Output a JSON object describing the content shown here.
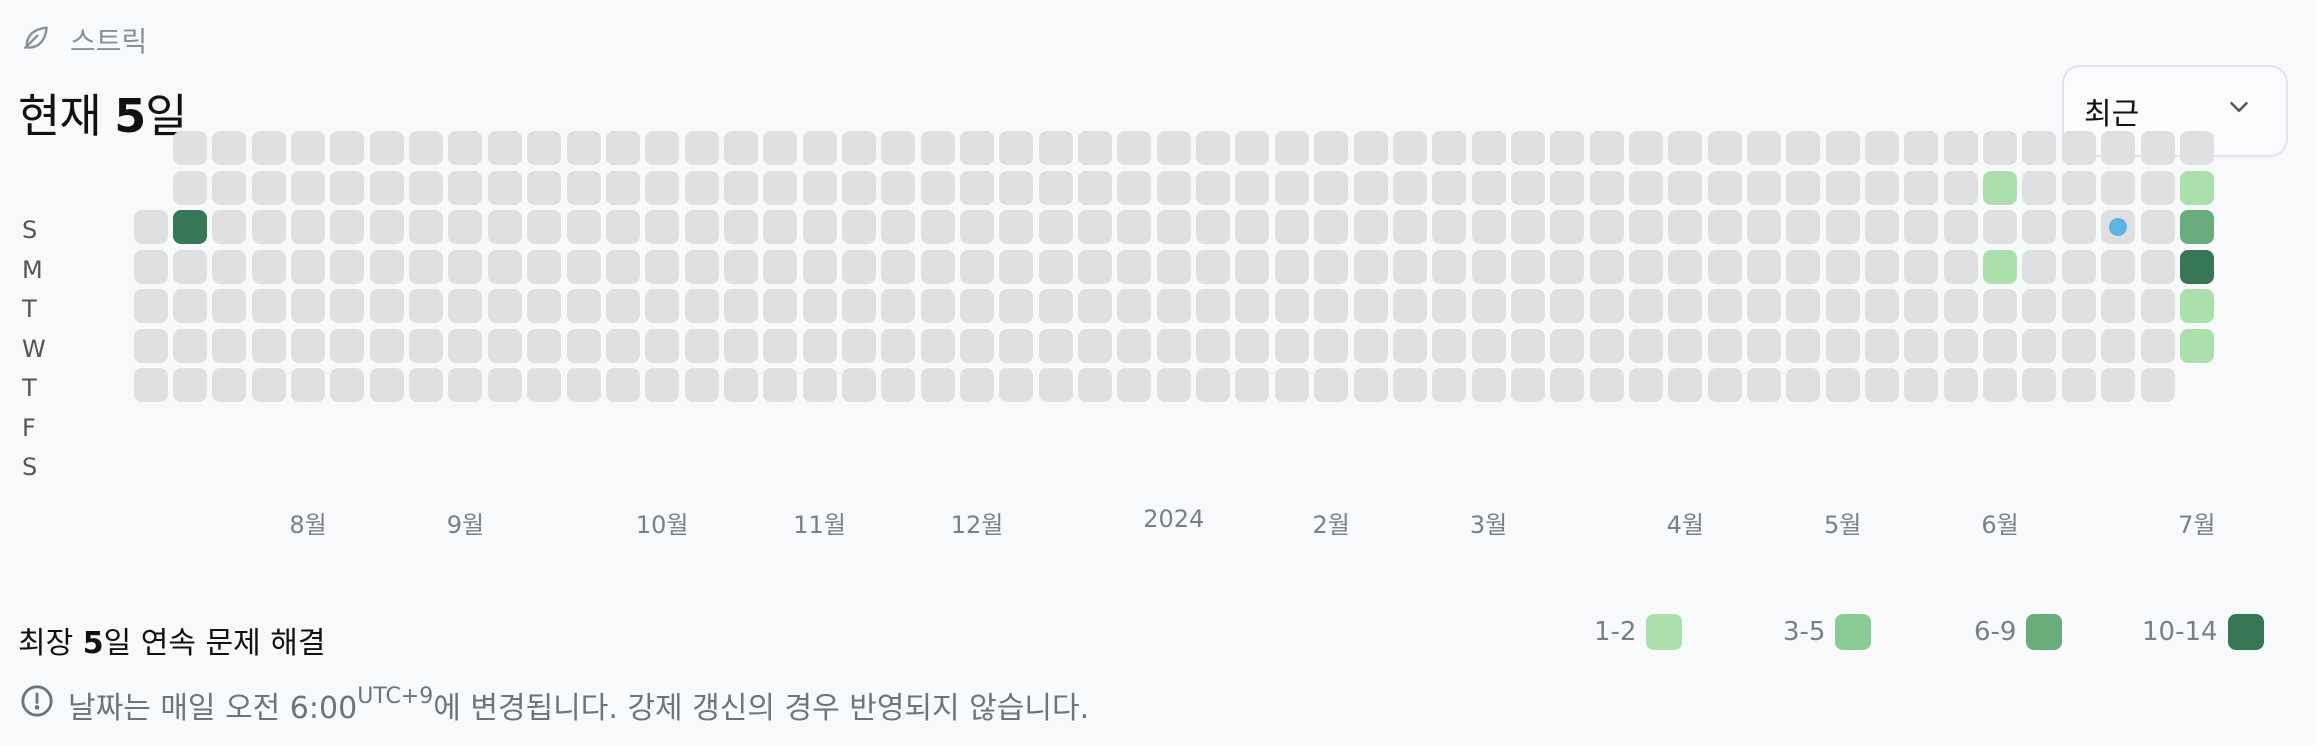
{
  "header": {
    "label": "스트릭",
    "icon": "leaf-icon",
    "current_prefix": "현재 ",
    "current_value": "5",
    "current_suffix": "일"
  },
  "period_select": {
    "selected": "최근",
    "icon": "chevron-down-icon"
  },
  "day_labels": [
    "S",
    "M",
    "T",
    "W",
    "T",
    "F",
    "S"
  ],
  "months": [
    {
      "label": "8월",
      "week": 4
    },
    {
      "label": "9월",
      "week": 8
    },
    {
      "label": "10월",
      "week": 13
    },
    {
      "label": "11월",
      "week": 17
    },
    {
      "label": "12월",
      "week": 21
    },
    {
      "label": "2024",
      "week": 26
    },
    {
      "label": "2월",
      "week": 30
    },
    {
      "label": "3월",
      "week": 34
    },
    {
      "label": "4월",
      "week": 39
    },
    {
      "label": "5월",
      "week": 43
    },
    {
      "label": "6월",
      "week": 47
    },
    {
      "label": "7월",
      "week": 52
    }
  ],
  "heatmap": {
    "weeks": 53,
    "first_week_start_day": 2,
    "last_week_end_day": 5,
    "active": [
      {
        "week": 1,
        "day": 2,
        "level": 4
      },
      {
        "week": 47,
        "day": 1,
        "level": 1
      },
      {
        "week": 47,
        "day": 3,
        "level": 1
      },
      {
        "week": 52,
        "day": 1,
        "level": 1
      },
      {
        "week": 52,
        "day": 2,
        "level": 3
      },
      {
        "week": 52,
        "day": 3,
        "level": 4
      },
      {
        "week": 52,
        "day": 4,
        "level": 1
      },
      {
        "week": 52,
        "day": 5,
        "level": 1
      }
    ],
    "today": {
      "week": 50,
      "day": 2
    }
  },
  "longest": {
    "prefix": "최장 ",
    "value": "5",
    "suffix": "일 연속 문제 해결"
  },
  "legend": [
    {
      "label": "1-2",
      "color": "#abe0ad"
    },
    {
      "label": "3-5",
      "color": "#8bcb93"
    },
    {
      "label": "6-9",
      "color": "#68ad7b"
    },
    {
      "label": "10-14",
      "color": "#377755"
    }
  ],
  "notice": {
    "icon": "info-circle-icon",
    "text_before": "날짜는 매일 오전 6:00",
    "timezone": "UTC+9",
    "text_after": "에 변경됩니다. 강제 갱신의 경우 반영되지 않습니다."
  }
}
